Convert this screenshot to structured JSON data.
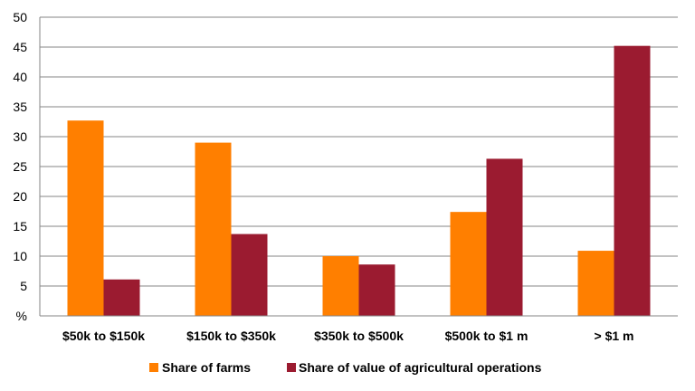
{
  "chart_data": {
    "type": "bar",
    "categories": [
      "$50k to $150k",
      "$150k to $350k",
      "$350k to $500k",
      "$500k to $1 m",
      "> $1 m"
    ],
    "series": [
      {
        "name": "Share of farms",
        "color": "#FF7F00",
        "values": [
          32.7,
          29.0,
          10.0,
          17.4,
          10.9
        ]
      },
      {
        "name": "Share of value of agricultural operations",
        "color": "#9B1B30",
        "values": [
          6.1,
          13.7,
          8.6,
          26.3,
          45.2
        ]
      }
    ],
    "y_ticks": [
      "%",
      "5",
      "10",
      "15",
      "20",
      "25",
      "30",
      "35",
      "40",
      "45",
      "50"
    ],
    "ylim": [
      0,
      50
    ],
    "grid": true,
    "legend_position": "bottom"
  }
}
